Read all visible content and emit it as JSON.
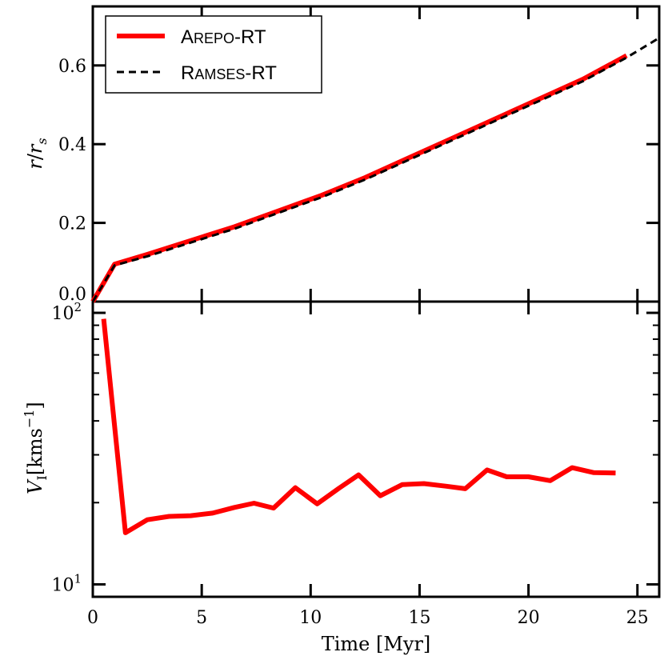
{
  "chart_data": [
    {
      "panel": "top",
      "type": "line",
      "ylabel_main": "r",
      "ylabel_sep": "/",
      "ylabel_sub_base": "r",
      "ylabel_sub": "s",
      "xlim": [
        0,
        26
      ],
      "ylim": [
        0,
        0.75
      ],
      "yticks": [
        0.0,
        0.2,
        0.4,
        0.6
      ],
      "ytick_labels": [
        "0.0",
        "0.2",
        "0.4",
        "0.6"
      ],
      "legend": {
        "position": "top-left",
        "entries": [
          {
            "lead": "A",
            "rest": "REPO",
            "suffix": "-RT",
            "style": "solid",
            "color": "#ff0000"
          },
          {
            "lead": "R",
            "rest": "AMSES",
            "suffix": "-RT",
            "style": "dashed",
            "color": "#000000"
          }
        ]
      },
      "series": [
        {
          "name": "Arepo-RT",
          "color": "#ff0000",
          "style": "solid",
          "x": [
            0,
            1.0,
            2.5,
            4.5,
            6.5,
            8.5,
            10.5,
            12.5,
            14.5,
            16.5,
            18.5,
            20.5,
            22.5,
            24.5
          ],
          "y": [
            0.0,
            0.095,
            0.12,
            0.155,
            0.19,
            0.23,
            0.27,
            0.315,
            0.365,
            0.415,
            0.465,
            0.515,
            0.565,
            0.625
          ]
        },
        {
          "name": "Ramses-RT",
          "color": "#000000",
          "style": "dashed",
          "x": [
            0,
            1.0,
            2.5,
            4.5,
            6.5,
            8.5,
            10.5,
            12.5,
            14.5,
            16.5,
            18.5,
            20.5,
            22.5,
            24.5,
            26.0
          ],
          "y": [
            0.0,
            0.092,
            0.115,
            0.15,
            0.185,
            0.225,
            0.265,
            0.31,
            0.36,
            0.41,
            0.46,
            0.51,
            0.56,
            0.62,
            0.67
          ]
        }
      ]
    },
    {
      "panel": "bottom",
      "type": "line",
      "yscale": "log",
      "ylabel_main": "V",
      "ylabel_sub": "I",
      "ylabel_unit": "[kms",
      "ylabel_exp": "−1",
      "ylabel_close": "]",
      "xlabel": "Time [Myr]",
      "xlim": [
        0,
        26
      ],
      "ylim": [
        9,
        110
      ],
      "xticks": [
        0,
        5,
        10,
        15,
        20,
        25
      ],
      "xtick_labels": [
        "0",
        "5",
        "10",
        "15",
        "20",
        "25"
      ],
      "yticks": [
        10,
        100
      ],
      "ytick_bases": [
        "10",
        "10"
      ],
      "ytick_exps": [
        "1",
        "2"
      ],
      "series": [
        {
          "name": "Arepo-RT",
          "color": "#ff0000",
          "style": "solid",
          "x": [
            0.5,
            1.5,
            2.5,
            3.5,
            4.5,
            5.5,
            6.5,
            7.4,
            8.3,
            9.3,
            10.3,
            11.3,
            12.2,
            13.2,
            14.2,
            15.2,
            16.2,
            17.1,
            18.1,
            19.0,
            20.0,
            21.0,
            22.0,
            23.0,
            24.0
          ],
          "y": [
            95,
            15.5,
            17.3,
            17.8,
            17.9,
            18.3,
            19.2,
            19.9,
            19.1,
            22.7,
            19.8,
            22.6,
            25.3,
            21.2,
            23.3,
            23.5,
            23.0,
            22.5,
            26.4,
            24.9,
            24.9,
            24.1,
            26.9,
            25.8,
            25.7
          ]
        }
      ]
    }
  ]
}
